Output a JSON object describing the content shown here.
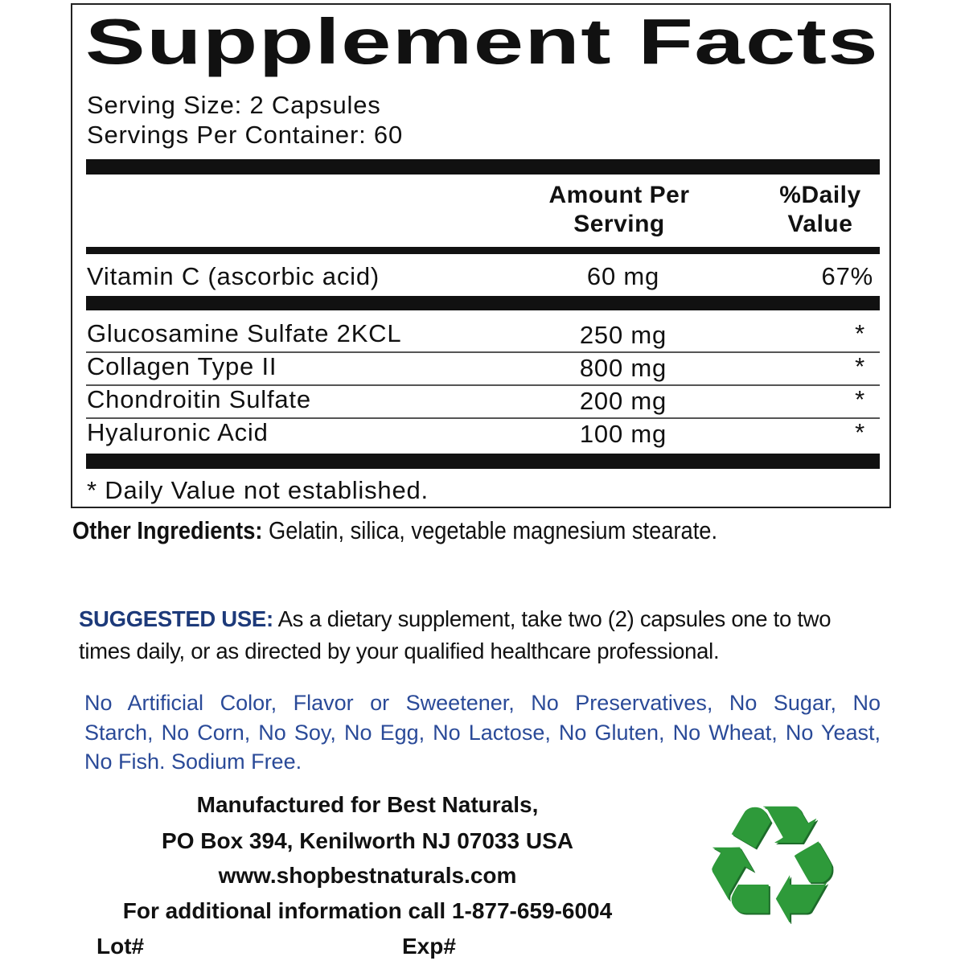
{
  "facts": {
    "title": "Supplement Facts",
    "serving_size": "Serving Size:  2 Capsules",
    "servings_per_container": "Servings Per Container: 60",
    "header_amount_line1": "Amount Per",
    "header_amount_line2": "Serving",
    "header_dv_line1": "%Daily",
    "header_dv_line2": "Value",
    "vitamins": [
      {
        "name": "Vitamin C (ascorbic acid)",
        "amount": "60 mg",
        "dv": "67%"
      }
    ],
    "ingredients": [
      {
        "name": "Glucosamine Sulfate 2KCL",
        "amount": "250 mg",
        "dv": "*"
      },
      {
        "name": "Collagen Type II",
        "amount": "800 mg",
        "dv": "*"
      },
      {
        "name": "Chondroitin Sulfate",
        "amount": "200 mg",
        "dv": "*"
      },
      {
        "name": "Hyaluronic Acid",
        "amount": "100 mg",
        "dv": "*"
      }
    ],
    "footnote": "* Daily Value not established."
  },
  "other_ingredients": {
    "label": "Other Ingredients:",
    "text": " Gelatin, silica, vegetable magnesium stearate."
  },
  "suggested_use": {
    "label": "SUGGESTED USE:",
    "line1": " As a dietary supplement, take two (2) capsules one to two",
    "line2": "times daily, or as directed by your qualified healthcare professional."
  },
  "free_from": {
    "line1": "No Artificial Color, Flavor or Sweetener, No Preservatives, No Sugar, No",
    "line2": "Starch, No Corn, No Soy, No Egg, No Lactose, No Gluten, No Wheat, No Yeast,",
    "line3": "No Fish. Sodium Free."
  },
  "manufacturer": {
    "line1": "Manufactured for Best Naturals,",
    "line2": "PO Box 394, Kenilworth NJ 07033 USA",
    "website": "www.shopbestnaturals.com",
    "phone_line": "For additional information call 1-877-659-6004",
    "lot_label": "Lot#",
    "exp_label": "Exp#"
  },
  "icons": {
    "recycle": "recycle-icon"
  },
  "colors": {
    "heading_blue": "#1d3a7a",
    "text_blue": "#2a4a98",
    "recycle_green": "#2e9a3a"
  }
}
